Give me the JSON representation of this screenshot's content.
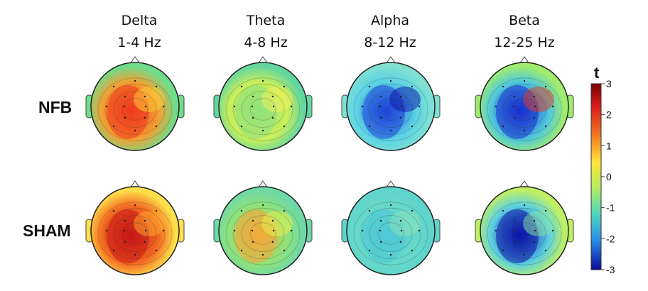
{
  "bands": [
    {
      "name": "Delta",
      "range": "1-4 Hz"
    },
    {
      "name": "Theta",
      "range": "4-8 Hz"
    },
    {
      "name": "Alpha",
      "range": "8-12 Hz"
    },
    {
      "name": "Beta",
      "range": "12-25 Hz"
    }
  ],
  "rows": [
    "NFB",
    "SHAM"
  ],
  "colorbar": {
    "title": "t",
    "ticks": [
      "3",
      "2",
      "1",
      "0",
      "-1",
      "-2",
      "-3"
    ],
    "min": -3,
    "max": 3
  },
  "maps": [
    {
      "row": "NFB",
      "band": "Delta",
      "colors": [
        "#f2a033",
        "#ee3a1e",
        "#ffd23a",
        "#6fdc8a"
      ]
    },
    {
      "row": "NFB",
      "band": "Theta",
      "colors": [
        "#c9ee5a",
        "#8fe27a",
        "#f5f25a",
        "#63d6a0"
      ]
    },
    {
      "row": "NFB",
      "band": "Alpha",
      "colors": [
        "#5ad2e6",
        "#1f45d8",
        "#0b12a8",
        "#7fe0d2"
      ]
    },
    {
      "row": "NFB",
      "band": "Beta",
      "colors": [
        "#4ec8dc",
        "#1a2fd0",
        "#e83a1e",
        "#a0ec6e"
      ]
    },
    {
      "row": "SHAM",
      "band": "Delta",
      "colors": [
        "#f36a22",
        "#c81818",
        "#ffb030",
        "#ffe04a"
      ]
    },
    {
      "row": "SHAM",
      "band": "Theta",
      "colors": [
        "#8fe27a",
        "#f5a838",
        "#e8f24e",
        "#6ed8a6"
      ]
    },
    {
      "row": "SHAM",
      "band": "Alpha",
      "colors": [
        "#66d8c8",
        "#4ec8d6",
        "#8ee4b8",
        "#5fd4cc"
      ]
    },
    {
      "row": "SHAM",
      "band": "Beta",
      "colors": [
        "#5acfe2",
        "#0b12a8",
        "#8ee6a6",
        "#bff064"
      ]
    }
  ]
}
